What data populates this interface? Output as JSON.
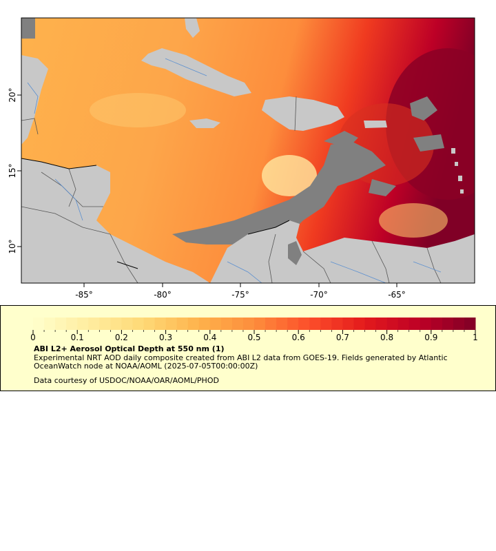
{
  "map": {
    "lon_ticks": [
      "-85°",
      "-80°",
      "-75°",
      "-70°",
      "-65°"
    ],
    "lat_ticks": [
      "20°",
      "15°",
      "10°"
    ],
    "colors": {
      "land": "#c8c8c8",
      "no_data": "#808080",
      "frame": "#000000",
      "rivers": "#5a8fd0",
      "borders": "#555555"
    }
  },
  "legend": {
    "colorbar": {
      "min": 0,
      "max": 1,
      "steps": 40,
      "colors": [
        "#ffffcc",
        "#ffeda0",
        "#fed976",
        "#feb24c",
        "#fd8d3c",
        "#fc4e2a",
        "#e31a1c",
        "#bd0026",
        "#800026"
      ],
      "tick_labels": [
        "0",
        "0.1",
        "0.2",
        "0.3",
        "0.4",
        "0.5",
        "0.6",
        "0.7",
        "0.8",
        "0.9",
        "1"
      ]
    },
    "title": "ABI L2+ Aerosol Optical Depth at 550 nm (1)",
    "description": "Experimental NRT AOD daily composite created from ABI L2 data from GOES-19. Fields generated by Atlantic OceanWatch node at NOAA/AOML (2025-07-05T00:00:00Z)",
    "credit": "Data courtesy of USDOC/NOAA/OAR/AOML/PHOD"
  }
}
